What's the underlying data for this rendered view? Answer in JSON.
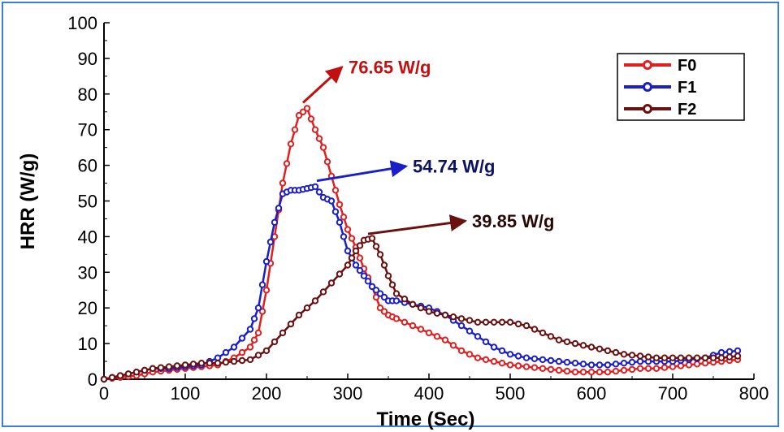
{
  "chart_data": {
    "type": "line",
    "title": "",
    "xlabel": "Time (Sec)",
    "ylabel": "HRR (W/g)",
    "xlim": [
      0,
      800
    ],
    "ylim": [
      0,
      100
    ],
    "xticks": [
      "0",
      "100",
      "200",
      "300",
      "400",
      "500",
      "600",
      "700",
      "800"
    ],
    "yticks": [
      "0",
      "10",
      "20",
      "30",
      "40",
      "50",
      "60",
      "70",
      "80",
      "90",
      "100"
    ],
    "grid": false,
    "legend_position": "top-right",
    "colors": {
      "F0": "#e02020",
      "F1": "#1a1fc8",
      "F2": "#6b1010"
    },
    "series": [
      {
        "name": "F0",
        "color": "#e02020",
        "x": [
          0,
          20,
          40,
          60,
          80,
          100,
          120,
          140,
          160,
          180,
          190,
          200,
          210,
          220,
          230,
          240,
          250,
          260,
          270,
          280,
          290,
          300,
          310,
          320,
          330,
          340,
          350,
          360,
          380,
          400,
          420,
          440,
          460,
          480,
          500,
          520,
          540,
          560,
          580,
          600,
          620,
          640,
          660,
          680,
          700,
          720,
          740,
          760,
          780
        ],
        "y": [
          0,
          0.5,
          1,
          2,
          2.5,
          3,
          3.5,
          4,
          6,
          9,
          13,
          25,
          40,
          55,
          66,
          74,
          76,
          70,
          65,
          57,
          49,
          42,
          37,
          31,
          26,
          20,
          18,
          17,
          15,
          13,
          11,
          8,
          6,
          5,
          4,
          3.5,
          3,
          2.5,
          2,
          2,
          2,
          2.5,
          3,
          3,
          3.5,
          4,
          4.5,
          5,
          5.5
        ]
      },
      {
        "name": "F1",
        "color": "#1a1fc8",
        "x": [
          0,
          20,
          40,
          60,
          80,
          100,
          120,
          140,
          160,
          180,
          190,
          200,
          210,
          220,
          230,
          240,
          250,
          260,
          270,
          280,
          290,
          300,
          310,
          320,
          330,
          340,
          350,
          360,
          380,
          400,
          420,
          440,
          460,
          480,
          500,
          520,
          540,
          560,
          580,
          600,
          620,
          640,
          660,
          680,
          700,
          720,
          740,
          760,
          780
        ],
        "y": [
          0,
          1,
          2,
          3,
          3,
          3.5,
          4,
          6,
          9,
          14,
          20,
          33,
          44,
          52,
          53,
          53,
          53.5,
          54,
          51,
          50,
          44,
          36,
          32,
          29,
          26,
          24,
          22,
          22,
          21,
          20,
          18,
          15,
          12,
          9,
          7,
          6,
          5.5,
          5,
          4.5,
          4,
          4,
          4.5,
          5,
          5,
          5,
          5.5,
          6,
          7.5,
          8
        ]
      },
      {
        "name": "F2",
        "color": "#6b1010",
        "x": [
          0,
          20,
          40,
          60,
          80,
          100,
          120,
          140,
          160,
          180,
          200,
          220,
          240,
          260,
          280,
          300,
          310,
          320,
          330,
          340,
          350,
          360,
          380,
          400,
          420,
          440,
          460,
          480,
          500,
          520,
          540,
          560,
          580,
          600,
          620,
          640,
          660,
          680,
          700,
          720,
          740,
          760,
          780
        ],
        "y": [
          0,
          1,
          2,
          3,
          3.5,
          4,
          4.5,
          4.5,
          5,
          5.5,
          8,
          13,
          18,
          22,
          27,
          32,
          36,
          39,
          39.5,
          35,
          29,
          24,
          21,
          19,
          18,
          17,
          16,
          16,
          16,
          15,
          13,
          11,
          10,
          9,
          8,
          7,
          6.5,
          6,
          6,
          6,
          6,
          6,
          6.5
        ]
      }
    ],
    "annotations": [
      {
        "text": "76.65 W/g",
        "series": "F0",
        "x": 245,
        "y": 76.65,
        "color": "#c01010"
      },
      {
        "text": "54.74 W/g",
        "series": "F1",
        "x": 262,
        "y": 54.74,
        "color": "#1a1fc8"
      },
      {
        "text": "39.85 W/g",
        "series": "F2",
        "x": 325,
        "y": 39.85,
        "color": "#6b1010"
      }
    ]
  }
}
